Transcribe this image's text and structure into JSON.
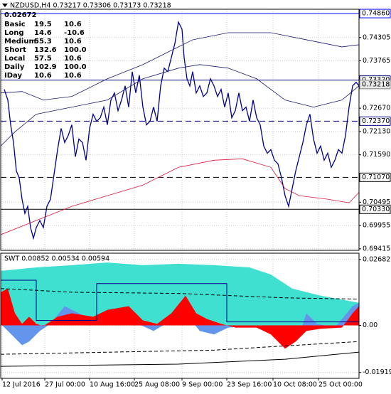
{
  "chart_data": [
    {
      "type": "line",
      "title": "NZDUSD,H4 0.73217 0.73306 0.73173 0.73218",
      "xlim": [
        0,
        504
      ],
      "ylim": [
        0.6938,
        0.7496
      ],
      "yticks": [
        0.74305,
        0.73765,
        {
          "value": 0.7267,
          "label": "0.72670"
        },
        {
          "value": 0.7213,
          "label": "0.72130"
        },
        {
          "value": 0.7159,
          "label": "0.71590"
        },
        0.70495,
        0.69955,
        0.69415
      ],
      "grid": true,
      "last_price": 0.73218,
      "levels": [
        {
          "value": 0.7486,
          "label": "0.74860",
          "color": "#0000ff",
          "dash": false
        },
        {
          "value": 0.7332,
          "label": "0.73320",
          "color": "#000080",
          "dash": false
        },
        {
          "value": 0.7237,
          "label": "0.72370",
          "color": "#000080",
          "dash": true
        },
        {
          "value": 0.7107,
          "label": "0.71070",
          "color": "#000000",
          "dash": true
        },
        {
          "value": 0.7033,
          "label": "0.70330",
          "color": "#000000",
          "dash": false
        }
      ],
      "info_table": {
        "header": "0.02672",
        "rows": [
          [
            "Basic",
            "19.5",
            "10.6"
          ],
          [
            "Long",
            "14.6",
            "-10.6"
          ],
          [
            "Medium",
            "55.3",
            "10.6"
          ],
          [
            "Short",
            "132.6",
            "100.0"
          ],
          [
            "Local",
            "57.5",
            "10.6"
          ],
          [
            "Daily",
            "102.9",
            "100.0"
          ],
          [
            "IDay",
            "10.6",
            "10.6"
          ]
        ]
      },
      "series": [
        {
          "color": "#00008b",
          "width": 1.3,
          "x": [
            5,
            10,
            14,
            18,
            22,
            26,
            30,
            34,
            38,
            42,
            46,
            50,
            55,
            60,
            65,
            70,
            75,
            80,
            85,
            90,
            95,
            100,
            105,
            110,
            115,
            120,
            125,
            130,
            135,
            140,
            145,
            150,
            155,
            160,
            165,
            170,
            175,
            180,
            185,
            190,
            195,
            200,
            205,
            210,
            215,
            220,
            225,
            230,
            235,
            240,
            245,
            250,
            255,
            258,
            262,
            266,
            270,
            275,
            280,
            285,
            290,
            295,
            300,
            305,
            310,
            315,
            320,
            325,
            330,
            335,
            340,
            345,
            350,
            355,
            360,
            365,
            370,
            375,
            380,
            385,
            390,
            395,
            400,
            405,
            410,
            415,
            420,
            425,
            430,
            435,
            440,
            445,
            450,
            455,
            460,
            465,
            470,
            475,
            480,
            485,
            490,
            495,
            500,
            504
          ],
          "values": [
            0.73105,
            0.72859,
            0.72285,
            0.71875,
            0.71219,
            0.71055,
            0.70563,
            0.70235,
            0.70399,
            0.69907,
            0.69661,
            0.69907,
            0.70071,
            0.69907,
            0.70399,
            0.70563,
            0.71137,
            0.71711,
            0.72203,
            0.71875,
            0.72039,
            0.72285,
            0.71547,
            0.71957,
            0.71875,
            0.71465,
            0.72203,
            0.72531,
            0.72367,
            0.72449,
            0.72695,
            0.72285,
            0.72859,
            0.73023,
            0.72613,
            0.72859,
            0.73187,
            0.72695,
            0.73515,
            0.73023,
            0.73433,
            0.72695,
            0.72285,
            0.72367,
            0.72695,
            0.72367,
            0.73187,
            0.73597,
            0.73515,
            0.73843,
            0.74171,
            0.74663,
            0.74499,
            0.73843,
            0.73351,
            0.73187,
            0.73515,
            0.73023,
            0.73187,
            0.72941,
            0.73023,
            0.73351,
            0.73187,
            0.72941,
            0.73105,
            0.72695,
            0.73023,
            0.72449,
            0.72613,
            0.73023,
            0.72613,
            0.72695,
            0.72367,
            0.72859,
            0.72449,
            0.72285,
            0.71793,
            0.71629,
            0.71711,
            0.71465,
            0.71383,
            0.71055,
            0.70645,
            0.70399,
            0.70809,
            0.71219,
            0.71547,
            0.71875,
            0.72285,
            0.72531,
            0.71957,
            0.71629,
            0.71793,
            0.71465,
            0.71629,
            0.71301,
            0.71465,
            0.71711,
            0.71629,
            0.72039,
            0.72695,
            0.73187,
            0.73269,
            0.73187
          ]
        },
        {
          "color": "#191970",
          "width": 0.8,
          "x": [
            0,
            30,
            60,
            100,
            150,
            200,
            240,
            270,
            320,
            380,
            430,
            480,
            504
          ],
          "values": [
            0.73023,
            0.73056,
            0.72859,
            0.72941,
            0.73351,
            0.73679,
            0.74007,
            0.74253,
            0.74417,
            0.74417,
            0.74253,
            0.74089,
            0.74138
          ]
        },
        {
          "color": "#191970",
          "width": 0.8,
          "x": [
            0,
            20,
            50,
            100,
            150,
            200,
            250,
            280,
            320,
            360,
            400,
            440,
            480,
            504
          ],
          "values": [
            0.71793,
            0.72121,
            0.72531,
            0.72695,
            0.72859,
            0.73351,
            0.73597,
            0.73679,
            0.73597,
            0.73351,
            0.72859,
            0.72695,
            0.72859,
            0.73187
          ]
        },
        {
          "color": "#dc143c",
          "width": 0.8,
          "x": [
            0,
            50,
            100,
            150,
            200,
            250,
            300,
            340,
            380,
            400,
            420,
            460,
            490,
            504
          ],
          "values": [
            0.69743,
            0.70071,
            0.70399,
            0.70645,
            0.70891,
            0.71301,
            0.71465,
            0.71498,
            0.71301,
            0.70809,
            0.70645,
            0.70563,
            0.70481,
            0.70722
          ]
        }
      ]
    },
    {
      "type": "area",
      "title": "SWT 0.00852 0.00534 0.00594",
      "xlim": [
        0,
        504
      ],
      "ylim": [
        -0.0216,
        0.0294
      ],
      "yticks": [
        0.02682,
        {
          "value": 0,
          "label": "0.00"
        },
        -0.01919
      ],
      "xticks": [
        {
          "value": 2,
          "label": "12 Jul 2016"
        },
        {
          "value": 62,
          "label": "27 Jul 00:00"
        },
        {
          "value": 125,
          "label": "10 Aug 16:00"
        },
        {
          "value": 188,
          "label": "25 Aug 08:00"
        },
        {
          "value": 255,
          "label": "9 Sep 00:00"
        },
        {
          "value": 318,
          "label": "23 Sep 16:00"
        },
        {
          "value": 383,
          "label": "10 Oct 08:00"
        },
        {
          "value": 447,
          "label": "25 Oct 00:00"
        }
      ],
      "grid": true,
      "series": [
        {
          "color": "#40e0d0",
          "fill": true,
          "x": [
            0,
            50,
            100,
            150,
            200,
            250,
            300,
            350,
            380,
            410,
            450,
            504
          ],
          "values": [
            0.0222,
            0.0236,
            0.0245,
            0.0256,
            0.0245,
            0.0251,
            0.0245,
            0.0236,
            0.0207,
            0.015,
            0.0121,
            0.0092
          ]
        },
        {
          "color": "#6495ed",
          "fill": true,
          "x": [
            0,
            15,
            30,
            40,
            55,
            70,
            90,
            110,
            140,
            170,
            200,
            215,
            240,
            260,
            280,
            300,
            320,
            350,
            380,
            400,
            420,
            430,
            445,
            470,
            495,
            504
          ],
          "values": [
            0.0006,
            -0.0037,
            -0.0081,
            -0.0066,
            -0.0023,
            0.0006,
            0.0078,
            0.0049,
            0.0006,
            0.002,
            -0.0003,
            -0.0023,
            0.002,
            0.0049,
            -0.0023,
            -0.0037,
            -0.0009,
            -0.0003,
            -0.0023,
            -0.0066,
            -0.0037,
            0.0049,
            0.0006,
            -0.0009,
            0.0078,
            0.0092
          ]
        },
        {
          "color": "#ff0000",
          "fill": true,
          "x": [
            0,
            10,
            20,
            30,
            40,
            50,
            60,
            80,
            100,
            130,
            150,
            180,
            200,
            220,
            240,
            260,
            275,
            290,
            310,
            330,
            360,
            380,
            400,
            415,
            430,
            450,
            480,
            495,
            504
          ],
          "values": [
            0.0135,
            0.015,
            0.0049,
            0.0006,
            0.0035,
            0.0006,
            -0.0003,
            0.0035,
            0.0049,
            0.0035,
            0.0063,
            0.0078,
            0.002,
            0.0006,
            0.0049,
            0.0121,
            0.0049,
            0.0026,
            0.0006,
            -0.0009,
            -0.0009,
            -0.0037,
            -0.0095,
            -0.0066,
            -0.0023,
            -0.0014,
            -0.0009,
            0.0049,
            0.0078
          ]
        },
        {
          "color": "#00008b",
          "fill": false,
          "dash": false,
          "x": [
            0,
            50,
            50,
            135,
            135,
            318,
            318,
            504
          ],
          "values": [
            0.0184,
            0.0184,
            0.002,
            0.002,
            0.017,
            0.017,
            0.0014,
            0.0014
          ]
        },
        {
          "color": "#000000",
          "fill": false,
          "dash": true,
          "x": [
            0,
            100,
            250,
            400,
            504
          ],
          "values": [
            0.015,
            0.0135,
            0.013,
            0.0112,
            0.0107
          ]
        },
        {
          "color": "#000000",
          "fill": false,
          "dash": true,
          "x": [
            0,
            300,
            504
          ],
          "values": [
            -0.0118,
            -0.0101,
            -0.0066
          ]
        },
        {
          "color": "#000000",
          "fill": false,
          "dash": false,
          "x": [
            0,
            250,
            400,
            504
          ],
          "values": [
            -0.0167,
            -0.0158,
            -0.0138,
            -0.0109
          ]
        }
      ]
    }
  ]
}
